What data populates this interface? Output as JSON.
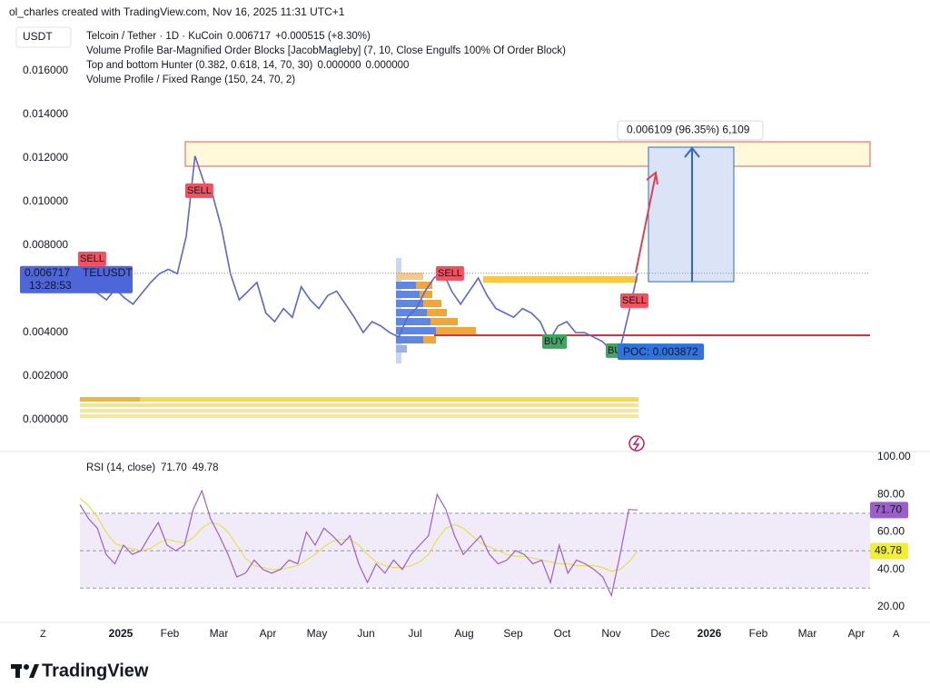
{
  "header": {
    "attribution": "ol_charles created with TradingView.com, Nov 16, 2025 11:31 UTC+1",
    "currency": "USDT",
    "symbol": "Telcoin / Tether · 1D · KuCoin",
    "last": "0.006717",
    "change": "+0.000515 (+8.30%)",
    "indicator_1": "Volume Profile Bar-Magnified Order Blocks [JacobMagleby] (7, 10, Close Engulfs 100% Of Order Block)",
    "indicator_2": "Top and bottom Hunter (0.382, 0.618, 14, 70, 30)",
    "indicator_2_up": "0.000000",
    "indicator_2_down": "0.000000",
    "indicator_3": "Volume Profile / Fixed Range (150, 24, 70, 2)"
  },
  "chart_data": [
    {
      "type": "line",
      "color": "#5b66d6",
      "values": [
        0.00675,
        0.0062,
        0.0058,
        0.0055,
        0.006,
        0.0056,
        0.0053,
        0.0058,
        0.0063,
        0.0067,
        0.0069,
        0.0067,
        0.0084,
        0.0121,
        0.0109,
        0.0103,
        0.0088,
        0.0067,
        0.0055,
        0.0059,
        0.0063,
        0.0049,
        0.0045,
        0.0051,
        0.0047,
        0.0061,
        0.0055,
        0.0051,
        0.0057,
        0.0059,
        0.0053,
        0.0047,
        0.004,
        0.0045,
        0.0043,
        0.004,
        0.0038,
        0.0047,
        0.0051,
        0.0059,
        0.0065,
        0.0068,
        0.0059,
        0.0053,
        0.0059,
        0.0065,
        0.0057,
        0.0051,
        0.0049,
        0.0047,
        0.0051,
        0.0049,
        0.0045,
        0.0036,
        0.0043,
        0.0045,
        0.004,
        0.004,
        0.0038,
        0.0036,
        0.0032,
        0.0032,
        0.0049,
        0.006717
      ],
      "ylim": [
        -0.001,
        0.018
      ],
      "yticks": [
        {
          "value": 0,
          "label": "0.000000"
        },
        {
          "value": 0.002,
          "label": "0.002000"
        },
        {
          "value": 0.004,
          "label": "0.004000"
        },
        {
          "value": 0.008,
          "label": "0.008000"
        },
        {
          "value": 0.01,
          "label": "0.010000"
        },
        {
          "value": 0.012,
          "label": "0.012000"
        },
        {
          "value": 0.014,
          "label": "0.014000"
        },
        {
          "value": 0.016,
          "label": "0.016000"
        }
      ]
    },
    {
      "type": "line",
      "title": "RSI (14, close)",
      "series": [
        {
          "color": "#9c5fc9",
          "last_label": "71.70",
          "values": [
            74.6,
            67,
            62,
            48,
            43,
            53,
            48,
            50,
            58,
            65,
            53,
            50,
            53,
            72,
            82,
            67,
            58,
            48,
            36,
            38,
            45,
            40,
            38,
            40,
            45,
            43,
            60,
            53,
            62,
            58,
            53,
            58,
            43,
            33,
            43,
            38,
            45,
            40,
            48,
            53,
            58,
            80,
            72,
            58,
            48,
            53,
            58,
            48,
            43,
            45,
            50,
            48,
            43,
            45,
            33,
            53,
            38,
            45,
            43,
            40,
            36,
            26,
            48,
            72,
            71.7
          ]
        },
        {
          "color": "#e8e04a",
          "last_label": "49.78",
          "values": [
            78,
            74,
            68,
            60,
            54,
            52,
            51,
            50,
            51,
            54,
            56,
            55,
            54,
            57,
            62,
            65,
            64,
            60,
            53,
            46,
            42,
            41,
            40,
            40,
            41,
            42,
            45,
            48,
            52,
            55,
            56,
            56,
            53,
            48,
            44,
            42,
            41,
            41,
            42,
            44,
            48,
            56,
            62,
            64,
            62,
            58,
            54,
            52,
            50,
            48,
            47,
            47,
            46,
            45,
            44,
            43,
            43,
            42,
            42,
            42,
            41,
            39,
            40,
            44,
            49.78
          ]
        }
      ],
      "levels": [
        70,
        50,
        30
      ],
      "ylim": [
        12,
        100
      ],
      "yticks": [
        {
          "value": 20,
          "label": "20.00"
        },
        {
          "value": 40,
          "label": "40.00"
        },
        {
          "value": 60,
          "label": "60.00"
        },
        {
          "value": 80,
          "label": "80.00"
        },
        {
          "value": 100,
          "label": "100.00"
        }
      ]
    }
  ],
  "time_axis": {
    "left": "Z",
    "right": "A",
    "labels": [
      "2025",
      "Feb",
      "Mar",
      "Apr",
      "May",
      "Jun",
      "Jul",
      "Aug",
      "Sep",
      "Oct",
      "Nov",
      "Dec",
      "2026",
      "Feb",
      "Mar",
      "Apr"
    ]
  },
  "annotations": {
    "signals": [
      "SELL",
      "SELL",
      "SELL",
      "SELL",
      "BUY",
      "BUY"
    ],
    "poc": "POC: 0.003872",
    "measure": "0.006109 (96.35%) 6,109",
    "price_tag": "0.006717",
    "ticker": "TELUSDT",
    "countdown": "13:28:53"
  },
  "footer": {
    "logo": "TradingView"
  }
}
